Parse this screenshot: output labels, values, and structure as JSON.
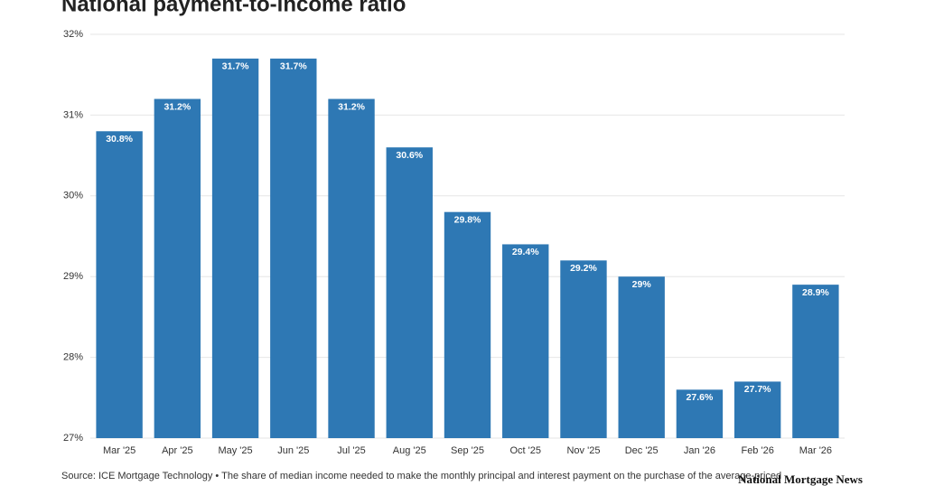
{
  "chart_data": {
    "type": "bar",
    "title": "National payment-to-income ratio",
    "categories": [
      "Mar '25",
      "Apr '25",
      "May '25",
      "Jun '25",
      "Jul '25",
      "Aug '25",
      "Sep '25",
      "Oct '25",
      "Nov '25",
      "Dec '25",
      "Jan '26",
      "Feb '26",
      "Mar '26"
    ],
    "values": [
      30.8,
      31.2,
      31.7,
      31.7,
      31.2,
      30.6,
      29.8,
      29.4,
      29.2,
      29,
      27.6,
      27.7,
      28.9
    ],
    "value_labels": [
      "30.8%",
      "31.2%",
      "31.7%",
      "31.7%",
      "31.2%",
      "30.6%",
      "29.8%",
      "29.4%",
      "29.2%",
      "29%",
      "27.6%",
      "27.7%",
      "28.9%"
    ],
    "color": "#2e78b4",
    "ylim": [
      27,
      32
    ],
    "yticks": [
      {
        "value": 27,
        "label": "27%"
      },
      {
        "value": 28,
        "label": "28%"
      },
      {
        "value": 29,
        "label": "29%"
      },
      {
        "value": 30,
        "label": "30%"
      },
      {
        "value": 31,
        "label": "31%"
      },
      {
        "value": 32,
        "label": "32%"
      }
    ],
    "grid": true,
    "source": "Source: ICE Mortgage Technology • The share of median income needed to make the monthly principal and interest payment on the purchase of the average-priced",
    "logo": "National Mortgage News"
  }
}
